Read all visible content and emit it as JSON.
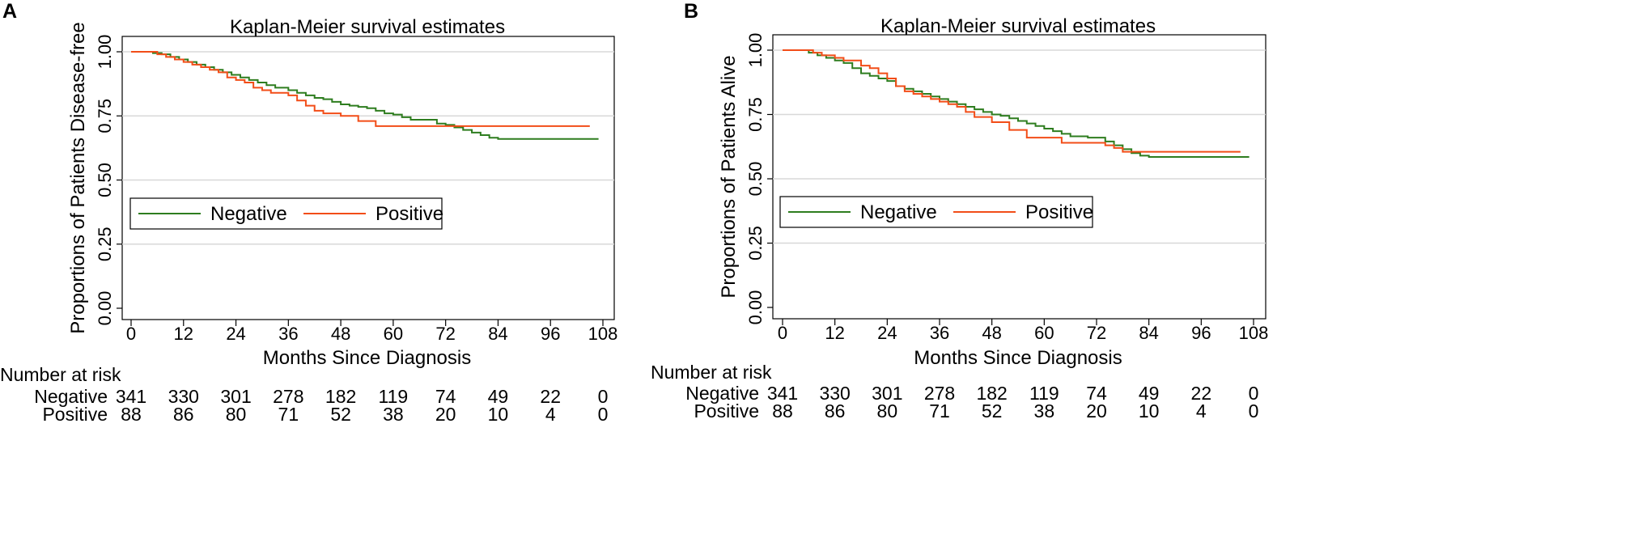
{
  "chart_data": [
    {
      "panel": "A",
      "type": "line",
      "title": "Kaplan-Meier survival estimates",
      "xlabel": "Months Since Diagnosis",
      "ylabel": "Proportions of Patients Disease-free",
      "xlim": [
        0,
        108
      ],
      "ylim": [
        0,
        1
      ],
      "x_ticks": [
        "0",
        "12",
        "24",
        "36",
        "48",
        "60",
        "72",
        "84",
        "96",
        "108"
      ],
      "y_ticks": [
        "0.00",
        "0.25",
        "0.50",
        "0.75",
        "1.00"
      ],
      "gridlines": true,
      "legend": {
        "position": "middle-left",
        "entries": [
          "Negative",
          "Positive"
        ]
      },
      "series": [
        {
          "name": "Negative",
          "color": "#2e7d1f",
          "x": [
            0,
            3,
            5,
            7,
            9,
            11,
            13,
            15,
            17,
            19,
            21,
            23,
            25,
            27,
            29,
            31,
            33,
            36,
            38,
            40,
            42,
            44,
            46,
            48,
            50,
            52,
            54,
            56,
            58,
            60,
            62,
            64,
            66,
            68,
            70,
            72,
            74,
            76,
            78,
            80,
            82,
            84,
            90,
            96,
            102,
            107
          ],
          "y": [
            1.0,
            1.0,
            0.995,
            0.99,
            0.98,
            0.97,
            0.96,
            0.95,
            0.94,
            0.93,
            0.92,
            0.91,
            0.9,
            0.89,
            0.88,
            0.87,
            0.86,
            0.85,
            0.84,
            0.83,
            0.82,
            0.815,
            0.805,
            0.795,
            0.79,
            0.785,
            0.78,
            0.77,
            0.76,
            0.755,
            0.745,
            0.735,
            0.735,
            0.735,
            0.72,
            0.715,
            0.705,
            0.695,
            0.685,
            0.675,
            0.665,
            0.66,
            0.66,
            0.66,
            0.66,
            0.66
          ]
        },
        {
          "name": "Positive",
          "color": "#f24d18",
          "x": [
            0,
            6,
            8,
            10,
            12,
            14,
            16,
            18,
            20,
            22,
            24,
            26,
            28,
            30,
            32,
            34,
            36,
            38,
            40,
            42,
            44,
            48,
            52,
            56,
            60,
            66,
            72,
            84,
            96,
            105
          ],
          "y": [
            1.0,
            0.99,
            0.98,
            0.97,
            0.96,
            0.95,
            0.94,
            0.93,
            0.92,
            0.9,
            0.89,
            0.88,
            0.86,
            0.85,
            0.84,
            0.84,
            0.83,
            0.81,
            0.79,
            0.77,
            0.76,
            0.75,
            0.73,
            0.71,
            0.71,
            0.71,
            0.71,
            0.71,
            0.71,
            0.71
          ]
        }
      ],
      "risk_table": {
        "heading": "Number at risk",
        "rows": [
          {
            "label": "Negative",
            "values": [
              "341",
              "330",
              "301",
              "278",
              "182",
              "119",
              "74",
              "49",
              "22",
              "0"
            ]
          },
          {
            "label": "Positive",
            "values": [
              "88",
              "86",
              "80",
              "71",
              "52",
              "38",
              "20",
              "10",
              "4",
              "0"
            ]
          }
        ]
      }
    },
    {
      "panel": "B",
      "type": "line",
      "title": "Kaplan-Meier survival estimates",
      "xlabel": "Months Since Diagnosis",
      "ylabel": "Proportions of Patients Alive",
      "xlim": [
        0,
        108
      ],
      "ylim": [
        0,
        1
      ],
      "x_ticks": [
        "0",
        "12",
        "24",
        "36",
        "48",
        "60",
        "72",
        "84",
        "96",
        "108"
      ],
      "y_ticks": [
        "0.00",
        "0.25",
        "0.50",
        "0.75",
        "1.00"
      ],
      "gridlines": true,
      "legend": {
        "position": "middle-left",
        "entries": [
          "Negative",
          "Positive"
        ]
      },
      "series": [
        {
          "name": "Negative",
          "color": "#2e7d1f",
          "x": [
            0,
            4,
            6,
            8,
            10,
            12,
            14,
            16,
            18,
            20,
            22,
            24,
            26,
            28,
            30,
            32,
            34,
            36,
            38,
            40,
            42,
            44,
            46,
            48,
            50,
            52,
            54,
            56,
            58,
            60,
            62,
            64,
            66,
            70,
            74,
            76,
            78,
            80,
            82,
            84,
            90,
            96,
            102,
            107
          ],
          "y": [
            1.0,
            1.0,
            0.99,
            0.98,
            0.97,
            0.96,
            0.95,
            0.93,
            0.91,
            0.9,
            0.89,
            0.88,
            0.86,
            0.85,
            0.84,
            0.83,
            0.82,
            0.81,
            0.8,
            0.79,
            0.78,
            0.77,
            0.76,
            0.75,
            0.745,
            0.735,
            0.725,
            0.715,
            0.705,
            0.695,
            0.685,
            0.675,
            0.665,
            0.66,
            0.645,
            0.63,
            0.615,
            0.6,
            0.59,
            0.585,
            0.585,
            0.585,
            0.585,
            0.585
          ]
        },
        {
          "name": "Positive",
          "color": "#f24d18",
          "x": [
            0,
            7,
            9,
            12,
            14,
            18,
            20,
            22,
            24,
            26,
            28,
            30,
            32,
            34,
            36,
            38,
            40,
            42,
            44,
            48,
            52,
            56,
            60,
            64,
            68,
            72,
            74,
            76,
            78,
            84,
            96,
            105
          ],
          "y": [
            1.0,
            0.99,
            0.98,
            0.97,
            0.96,
            0.94,
            0.93,
            0.91,
            0.89,
            0.86,
            0.84,
            0.83,
            0.82,
            0.81,
            0.8,
            0.79,
            0.78,
            0.76,
            0.74,
            0.72,
            0.69,
            0.66,
            0.66,
            0.64,
            0.64,
            0.64,
            0.63,
            0.62,
            0.605,
            0.605,
            0.605,
            0.605
          ]
        }
      ],
      "risk_table": {
        "heading": "Number at risk",
        "rows": [
          {
            "label": "Negative",
            "values": [
              "341",
              "330",
              "301",
              "278",
              "182",
              "119",
              "74",
              "49",
              "22",
              "0"
            ]
          },
          {
            "label": "Positive",
            "values": [
              "88",
              "86",
              "80",
              "71",
              "52",
              "38",
              "20",
              "10",
              "4",
              "0"
            ]
          }
        ]
      }
    }
  ]
}
